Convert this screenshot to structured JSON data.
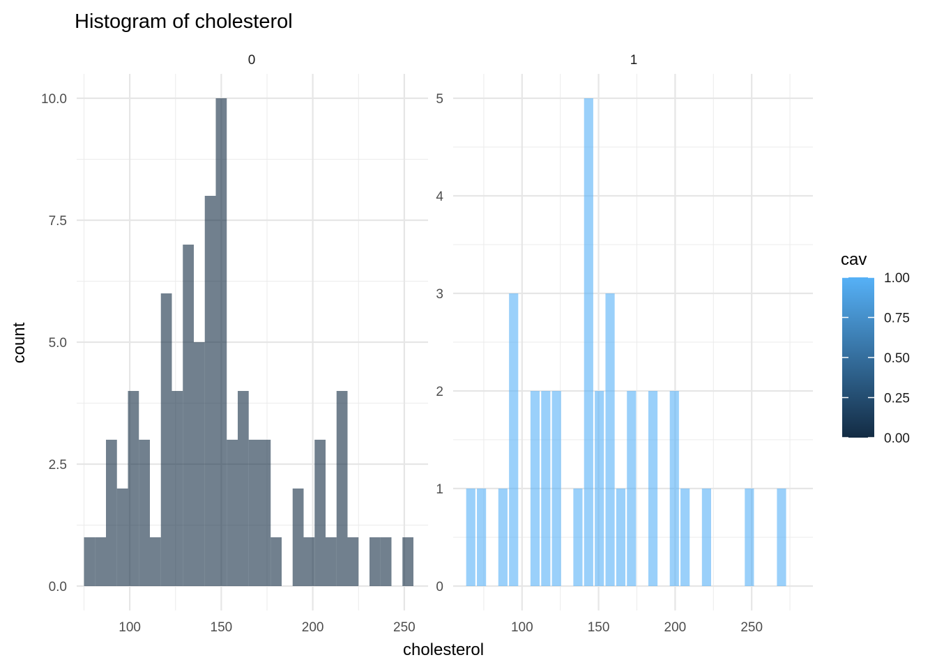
{
  "chart_data": {
    "type": "bar",
    "title": "Histogram of cholesterol",
    "xlabel": "cholesterol",
    "ylabel": "count",
    "grid": true,
    "bin_width": 6,
    "legend": {
      "title": "cav",
      "placement": "right",
      "type": "colorbar",
      "low_color": "#132B43",
      "high_color": "#56B1F7",
      "breaks": [
        "0.00",
        "0.25",
        "0.50",
        "0.75",
        "1.00"
      ]
    },
    "panels": [
      {
        "strip": "0",
        "fill": "#132B43",
        "fill_opacity": 0.6,
        "xlim": [
          71,
          263
        ],
        "ylim": [
          -0.5,
          10.5
        ],
        "x_breaks": [
          100,
          150,
          200,
          250
        ],
        "x_labels": [
          "100",
          "150",
          "200",
          "250"
        ],
        "y_breaks": [
          0,
          2.5,
          5,
          7.5,
          10
        ],
        "y_labels": [
          "0.0",
          "2.5",
          "5.0",
          "7.5",
          "10.0"
        ],
        "bins": [
          {
            "x": 78,
            "count": 1
          },
          {
            "x": 84,
            "count": 1
          },
          {
            "x": 90,
            "count": 3
          },
          {
            "x": 96,
            "count": 2
          },
          {
            "x": 102,
            "count": 4
          },
          {
            "x": 108,
            "count": 3
          },
          {
            "x": 114,
            "count": 1
          },
          {
            "x": 120,
            "count": 6
          },
          {
            "x": 126,
            "count": 4
          },
          {
            "x": 132,
            "count": 7
          },
          {
            "x": 138,
            "count": 5
          },
          {
            "x": 144,
            "count": 8
          },
          {
            "x": 150,
            "count": 10
          },
          {
            "x": 156,
            "count": 3
          },
          {
            "x": 162,
            "count": 4
          },
          {
            "x": 168,
            "count": 3
          },
          {
            "x": 174,
            "count": 3
          },
          {
            "x": 180,
            "count": 1
          },
          {
            "x": 186,
            "count": 0
          },
          {
            "x": 192,
            "count": 2
          },
          {
            "x": 198,
            "count": 1
          },
          {
            "x": 204,
            "count": 3
          },
          {
            "x": 210,
            "count": 1
          },
          {
            "x": 216,
            "count": 4
          },
          {
            "x": 222,
            "count": 1
          },
          {
            "x": 228,
            "count": 0
          },
          {
            "x": 234,
            "count": 1
          },
          {
            "x": 240,
            "count": 1
          },
          {
            "x": 246,
            "count": 0
          },
          {
            "x": 252,
            "count": 1
          }
        ]
      },
      {
        "strip": "1",
        "fill": "#56B1F7",
        "fill_opacity": 0.6,
        "xlim": [
          55,
          290
        ],
        "ylim": [
          -0.25,
          5.25
        ],
        "x_breaks": [
          100,
          150,
          200,
          250
        ],
        "x_labels": [
          "100",
          "150",
          "200",
          "250"
        ],
        "y_breaks": [
          0,
          1,
          2,
          3,
          4,
          5
        ],
        "y_labels": [
          "0",
          "1",
          "2",
          "3",
          "4",
          "5"
        ],
        "bins": [
          {
            "x": 66.5,
            "count": 1
          },
          {
            "x": 73.5,
            "count": 1
          },
          {
            "x": 80.5,
            "count": 0
          },
          {
            "x": 87.5,
            "count": 1
          },
          {
            "x": 94.5,
            "count": 3
          },
          {
            "x": 101.5,
            "count": 0
          },
          {
            "x": 108.5,
            "count": 2
          },
          {
            "x": 115.5,
            "count": 2
          },
          {
            "x": 122.5,
            "count": 2
          },
          {
            "x": 129.5,
            "count": 0
          },
          {
            "x": 136.5,
            "count": 1
          },
          {
            "x": 143.5,
            "count": 5
          },
          {
            "x": 150.5,
            "count": 2
          },
          {
            "x": 157.5,
            "count": 3
          },
          {
            "x": 164.5,
            "count": 1
          },
          {
            "x": 171.5,
            "count": 2
          },
          {
            "x": 178.5,
            "count": 0
          },
          {
            "x": 185.5,
            "count": 2
          },
          {
            "x": 192.5,
            "count": 0
          },
          {
            "x": 199.5,
            "count": 2
          },
          {
            "x": 206.5,
            "count": 1
          },
          {
            "x": 213.5,
            "count": 0
          },
          {
            "x": 220.5,
            "count": 1
          },
          {
            "x": 227.5,
            "count": 0
          },
          {
            "x": 234.5,
            "count": 0
          },
          {
            "x": 241.5,
            "count": 0
          },
          {
            "x": 248.5,
            "count": 1
          },
          {
            "x": 255.5,
            "count": 0
          },
          {
            "x": 262.5,
            "count": 0
          },
          {
            "x": 269.5,
            "count": 1
          }
        ]
      }
    ]
  }
}
